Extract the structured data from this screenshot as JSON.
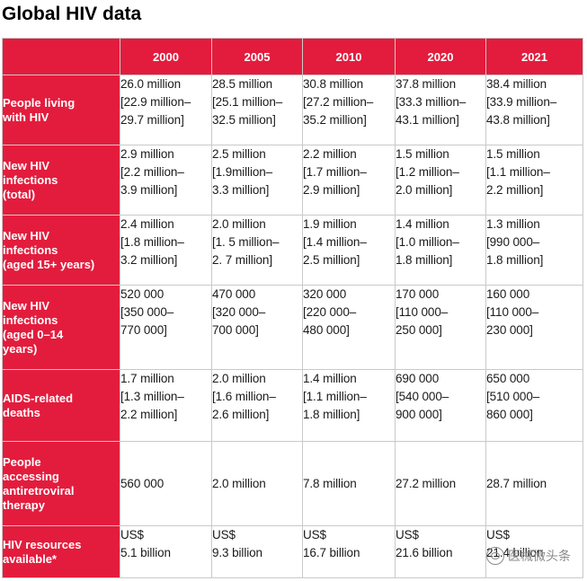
{
  "title": "Global HIV data",
  "years": [
    "2000",
    "2005",
    "2010",
    "2020",
    "2021"
  ],
  "rows": [
    {
      "label": "People living with HIV",
      "label_lines": [
        "People living",
        "with HIV"
      ],
      "cells": [
        [
          "26.0 million",
          "[22.9 million–",
          "29.7 million]"
        ],
        [
          "28.5 million",
          "[25.1 million–",
          "32.5 million]"
        ],
        [
          "30.8 million",
          "[27.2 million–",
          "35.2 million]"
        ],
        [
          "37.8 million",
          "[33.3 million–",
          "43.1 million]"
        ],
        [
          "38.4 million",
          "[33.9 million–",
          "43.8 million]"
        ]
      ]
    },
    {
      "label": "New HIV infections (total)",
      "label_lines": [
        "New HIV",
        "infections",
        "(total)"
      ],
      "cells": [
        [
          "2.9 million",
          "[2.2 million–",
          "3.9 million]"
        ],
        [
          "2.5 million",
          "[1.9million–",
          "3.3 million]"
        ],
        [
          "2.2 million",
          "[1.7 million–",
          "2.9 million]"
        ],
        [
          "1.5 million",
          "[1.2 million–",
          "2.0 million]"
        ],
        [
          "1.5 million",
          "[1.1 million–",
          "2.2 million]"
        ]
      ]
    },
    {
      "label": "New HIV infections (aged 15+ years)",
      "label_lines": [
        "New HIV",
        "infections",
        "(aged 15+ years)"
      ],
      "cells": [
        [
          "2.4 million",
          "[1.8 million–",
          "3.2 million]"
        ],
        [
          "2.0 million",
          "[1. 5 million–",
          "2. 7 million]"
        ],
        [
          "1.9 million",
          "[1.4 million–",
          "2.5 million]"
        ],
        [
          "1.4 million",
          "[1.0 million–",
          "1.8 million]"
        ],
        [
          "1.3 million",
          "[990 000–",
          "1.8 million]"
        ]
      ]
    },
    {
      "label": "New HIV infections (aged 0–14 years)",
      "label_lines": [
        "New HIV",
        "infections",
        "(aged 0–14",
        "years)"
      ],
      "cells": [
        [
          "520 000",
          "[350 000–",
          "770 000]"
        ],
        [
          "470 000",
          "[320 000–",
          "700 000]"
        ],
        [
          "320 000",
          "[220 000–",
          "480 000]"
        ],
        [
          "170 000",
          "[110 000–",
          "250 000]"
        ],
        [
          "160 000",
          "[110 000–",
          "230 000]"
        ]
      ]
    },
    {
      "label": "AIDS-related deaths",
      "label_lines": [
        "AIDS-related",
        "deaths"
      ],
      "cells": [
        [
          "1.7 million",
          "[1.3 million–",
          "2.2 million]"
        ],
        [
          "2.0 million",
          "[1.6 million–",
          "2.6 million]"
        ],
        [
          "1.4 million",
          "[1.1 million–",
          "1.8 million]"
        ],
        [
          "690 000",
          "[540 000–",
          "900 000]"
        ],
        [
          "650 000",
          "[510 000–",
          "860 000]"
        ]
      ]
    },
    {
      "label": "People accessing antiretroviral therapy",
      "label_lines": [
        "People",
        "accessing",
        "antiretroviral",
        "therapy"
      ],
      "cells": [
        [
          "560 000"
        ],
        [
          "2.0 million"
        ],
        [
          "7.8 million"
        ],
        [
          "27.2 million"
        ],
        [
          "28.7 million"
        ]
      ]
    },
    {
      "label": "HIV resources available*",
      "label_lines": [
        "HIV resources",
        "available*"
      ],
      "cells": [
        [
          "US$",
          "5.1 billion"
        ],
        [
          "US$",
          "9.3 billion"
        ],
        [
          "US$",
          "16.7 billion"
        ],
        [
          "US$",
          "21.6 billion"
        ],
        [
          "US$",
          "21.4 billion"
        ]
      ]
    }
  ],
  "watermark": {
    "text": "医械微头条",
    "icon": "wechat-official-account-icon"
  },
  "colors": {
    "header_red": "#e31c3d",
    "header_text": "#ffffff"
  }
}
